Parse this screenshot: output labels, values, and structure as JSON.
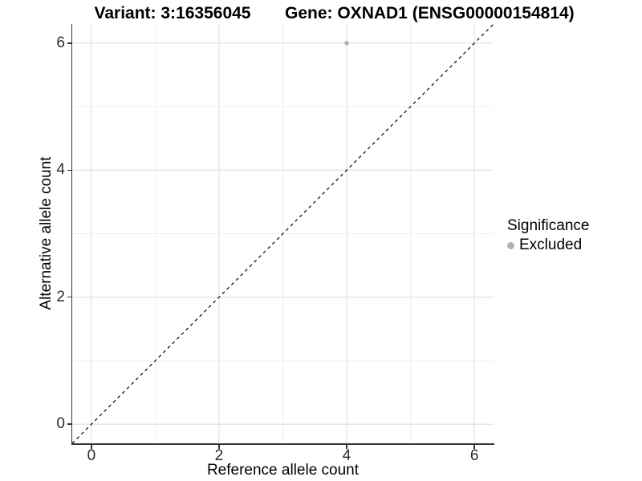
{
  "header": {
    "title_left": "Variant: 3:16356045",
    "title_right": "Gene: OXNAD1 (ENSG00000154814)"
  },
  "legend": {
    "title": "Significance",
    "items": [
      {
        "label": "Excluded",
        "color": "#b3b3b3"
      }
    ]
  },
  "chart_data": {
    "type": "scatter",
    "title": "Variant: 3:16356045    Gene: OXNAD1 (ENSG00000154814)",
    "xlabel": "Reference allele count",
    "ylabel": "Alternative allele count",
    "xlim": [
      -0.3,
      6.3
    ],
    "ylim": [
      -0.3,
      6.3
    ],
    "xticks": [
      0,
      2,
      4,
      6
    ],
    "yticks": [
      0,
      2,
      4,
      6
    ],
    "minor_xticks": [
      1,
      3,
      5
    ],
    "minor_yticks": [
      1,
      3,
      5
    ],
    "grid": true,
    "legend_position": "right",
    "series": [
      {
        "name": "Excluded",
        "color": "#b3b3b3",
        "points": [
          {
            "x": 4,
            "y": 6
          }
        ]
      }
    ],
    "reference_line": {
      "type": "identity y=x",
      "from": [
        -0.3,
        -0.3
      ],
      "to": [
        6.3,
        6.3
      ],
      "style": "dashed",
      "color": "#000000"
    },
    "colors": {
      "major_grid": "#e2e2e2",
      "minor_grid": "#f0f0f0",
      "axis_line": "#333333",
      "point": "#b3b3b3"
    }
  }
}
